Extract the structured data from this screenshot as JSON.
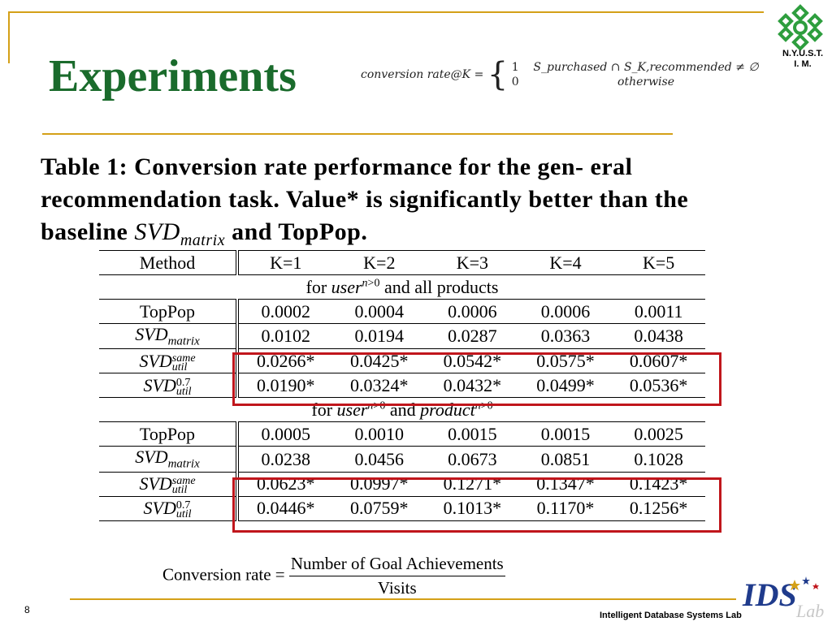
{
  "slide": {
    "title": "Experiments",
    "page_number": "8",
    "footer_lab": "Intelligent Database Systems Lab",
    "institution": "N.Y.U.S.T.",
    "department": "I. M."
  },
  "top_formula": {
    "lhs": "conversion rate@K =",
    "case1_value": "1",
    "case1_condition": "S_purchased ∩ S_K,recommended ≠ ∅",
    "case2_value": "0",
    "case2_condition": "otherwise"
  },
  "caption": {
    "text1": "Table 1: Conversion rate performance for the gen- eral recommendation task. Value* is significantly better than the baseline ",
    "svd": "SVD",
    "svd_sub": "matrix",
    "text2": " and TopPop."
  },
  "table": {
    "headers": [
      "Method",
      "K=1",
      "K=2",
      "K=3",
      "K=4",
      "K=5"
    ],
    "section1_label": "for user^{n>0} and all products",
    "section1": [
      {
        "method": "TopPop",
        "values": [
          "0.0002",
          "0.0004",
          "0.0006",
          "0.0006",
          "0.0011"
        ]
      },
      {
        "method": "SVD_matrix",
        "values": [
          "0.0102",
          "0.0194",
          "0.0287",
          "0.0363",
          "0.0438"
        ]
      },
      {
        "method": "SVD_util^same",
        "values": [
          "0.0266*",
          "0.0425*",
          "0.0542*",
          "0.0575*",
          "0.0607*"
        ]
      },
      {
        "method": "SVD_util^0.7",
        "values": [
          "0.0190*",
          "0.0324*",
          "0.0432*",
          "0.0499*",
          "0.0536*"
        ]
      }
    ],
    "section2_label": "for user^{n>0} and product^{n>0}",
    "section2": [
      {
        "method": "TopPop",
        "values": [
          "0.0005",
          "0.0010",
          "0.0015",
          "0.0015",
          "0.0025"
        ]
      },
      {
        "method": "SVD_matrix",
        "values": [
          "0.0238",
          "0.0456",
          "0.0673",
          "0.0851",
          "0.1028"
        ]
      },
      {
        "method": "SVD_util^same",
        "values": [
          "0.0623*",
          "0.0997*",
          "0.1271*",
          "0.1347*",
          "0.1423*"
        ]
      },
      {
        "method": "SVD_util^0.7",
        "values": [
          "0.0446*",
          "0.0759*",
          "0.1013*",
          "0.1170*",
          "0.1256*"
        ]
      }
    ]
  },
  "bottom_formula": {
    "lhs": "Conversion rate =",
    "numerator": "Number of Goal Achievements",
    "denominator": "Visits"
  },
  "colors": {
    "title_green": "#1a6b2c",
    "gold_rule": "#d4a017",
    "highlight_red": "#c0161c",
    "logo_green": "#2e9e3e",
    "ids_blue": "#1f3b8c"
  }
}
